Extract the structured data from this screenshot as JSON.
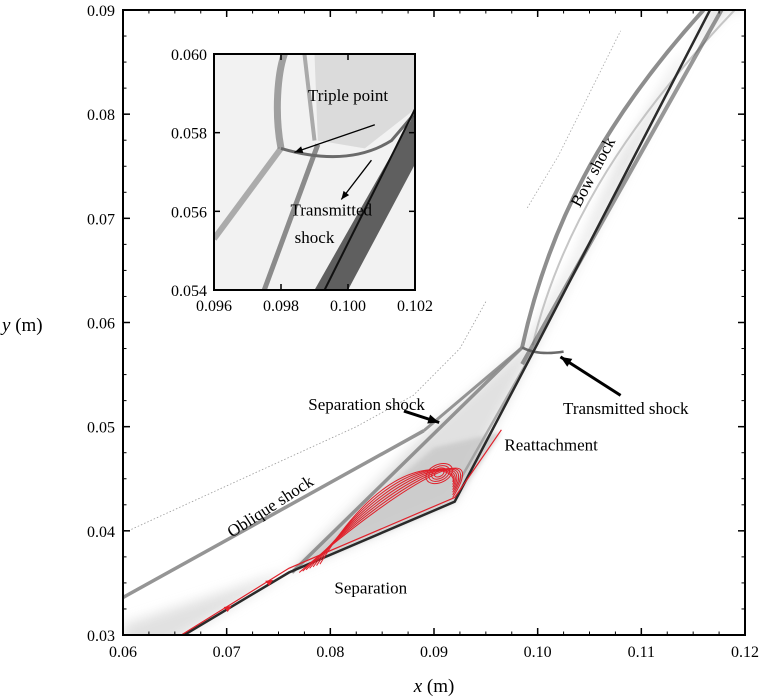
{
  "chart_data": {
    "type": "schlieren-contour",
    "main": {
      "xlabel_var": "x",
      "xlabel_unit": " (m)",
      "ylabel_var": "y",
      "ylabel_unit": " (m)",
      "xlim": [
        0.06,
        0.12
      ],
      "ylim": [
        0.03,
        0.09
      ],
      "xticks": [
        0.06,
        0.07,
        0.08,
        0.09,
        0.1,
        0.11,
        0.12
      ],
      "xtick_labels": [
        "0.06",
        "0.07",
        "0.08",
        "0.09",
        "0.10",
        "0.11",
        "0.12"
      ],
      "yticks": [
        0.03,
        0.04,
        0.05,
        0.06,
        0.07,
        0.08,
        0.09
      ],
      "ytick_labels": [
        "0.03",
        "0.04",
        "0.05",
        "0.06",
        "0.07",
        "0.08",
        "0.09"
      ],
      "wall": [
        [
          0.06,
          0.0265
        ],
        [
          0.076,
          0.036
        ],
        [
          0.092,
          0.0428
        ],
        [
          0.1,
          0.058
        ],
        [
          0.12,
          0.0965
        ]
      ],
      "annotations": [
        {
          "text": "Bow shock",
          "x": 0.1058,
          "y": 0.0742,
          "angle": -62
        },
        {
          "text": "Separation shock",
          "x": 0.0835,
          "y": 0.0516,
          "angle": 0
        },
        {
          "text": "Transmitted shock",
          "x": 0.1085,
          "y": 0.0512,
          "angle": 0
        },
        {
          "text": "Reattachment",
          "x": 0.1013,
          "y": 0.0477,
          "angle": 0
        },
        {
          "text": "Oblique shock",
          "x": 0.0745,
          "y": 0.0419,
          "angle": -33
        },
        {
          "text": "Separation",
          "x": 0.0839,
          "y": 0.034,
          "angle": 0
        }
      ],
      "arrows": [
        {
          "from": [
            0.0871,
            0.0515
          ],
          "to": [
            0.0905,
            0.0504
          ]
        },
        {
          "from": [
            0.108,
            0.053
          ],
          "to": [
            0.1022,
            0.0567
          ]
        }
      ]
    },
    "inset": {
      "xlim": [
        0.096,
        0.102
      ],
      "ylim": [
        0.054,
        0.06
      ],
      "xticks": [
        0.096,
        0.098,
        0.1,
        0.102
      ],
      "xtick_labels": [
        "0.096",
        "0.098",
        "0.100",
        "0.102"
      ],
      "yticks": [
        0.054,
        0.056,
        0.058,
        0.06
      ],
      "ytick_labels": [
        "0.054",
        "0.056",
        "0.058",
        "0.060"
      ],
      "annotations": [
        {
          "text": "Triple point",
          "x": 0.1,
          "y": 0.0588
        },
        {
          "text": "Transmitted",
          "x": 0.0995,
          "y": 0.0559
        },
        {
          "text": "shock",
          "x": 0.099,
          "y": 0.0552
        }
      ],
      "arrows": [
        {
          "from": [
            0.1008,
            0.0582
          ],
          "to": [
            0.0984,
            0.0575
          ]
        },
        {
          "from": [
            0.1007,
            0.0573
          ],
          "to": [
            0.0998,
            0.0563
          ]
        }
      ]
    },
    "colors": {
      "shock": "#8a8a8a",
      "wall": "#2a2a2a",
      "streamline": "#e0202a",
      "frame": "#000000"
    }
  }
}
